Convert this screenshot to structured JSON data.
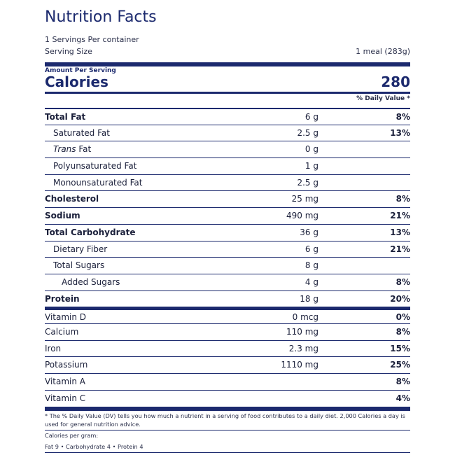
{
  "label": {
    "title": "Nutrition Facts",
    "servings_per_container": "1 Servings Per container",
    "serving_size_label": "Serving Size",
    "serving_size_value": "1 meal (283g)",
    "amount_per_serving": "Amount Per Serving",
    "calories_label": "Calories",
    "calories_value": "280",
    "daily_value_header": "% Daily Value *"
  },
  "nutrients": [
    {
      "name": "Total Fat",
      "amount": "6 g",
      "dv": "8%"
    },
    {
      "name": "Saturated Fat",
      "amount": "2.5 g",
      "dv": "13%"
    },
    {
      "name_italic": "Trans",
      "name_rest": " Fat",
      "amount": "0 g",
      "dv": ""
    },
    {
      "name": "Polyunsaturated Fat",
      "amount": "1 g",
      "dv": ""
    },
    {
      "name": "Monounsaturated Fat",
      "amount": "2.5 g",
      "dv": ""
    },
    {
      "name": "Cholesterol",
      "amount": "25 mg",
      "dv": "8%"
    },
    {
      "name": "Sodium",
      "amount": "490 mg",
      "dv": "21%"
    },
    {
      "name": "Total Carbohydrate",
      "amount": "36 g",
      "dv": "13%"
    },
    {
      "name": "Dietary Fiber",
      "amount": "6 g",
      "dv": "21%"
    },
    {
      "name": "Total Sugars",
      "amount": "8 g",
      "dv": ""
    },
    {
      "name": "Added Sugars",
      "amount": "4 g",
      "dv": "8%"
    },
    {
      "name": "Protein",
      "amount": "18 g",
      "dv": "20%"
    }
  ],
  "vitamins": [
    {
      "name": "Vitamin D",
      "amount": "0 mcg",
      "dv": "0%"
    },
    {
      "name": "Calcium",
      "amount": "110 mg",
      "dv": "8%"
    },
    {
      "name": "Iron",
      "amount": "2.3 mg",
      "dv": "15%"
    },
    {
      "name": "Potassium",
      "amount": "1110 mg",
      "dv": "25%"
    },
    {
      "name": "Vitamin A",
      "amount": "",
      "dv": "8%"
    },
    {
      "name": "Vitamin C",
      "amount": "",
      "dv": "4%"
    }
  ],
  "footer": {
    "footnote": "* The % Daily Value (DV) tells you how much a nutrient in a serving of food contributes to a daily diet. 2,000 Calories a day is used for general nutrition advice.",
    "calories_per_gram_label": "Calories per gram:",
    "calories_per_gram_values": "Fat 9 • Carbohydrate 4 • Protein 4"
  },
  "colors": {
    "navy": "#1c2a6e",
    "text": "#1a1f3a"
  }
}
